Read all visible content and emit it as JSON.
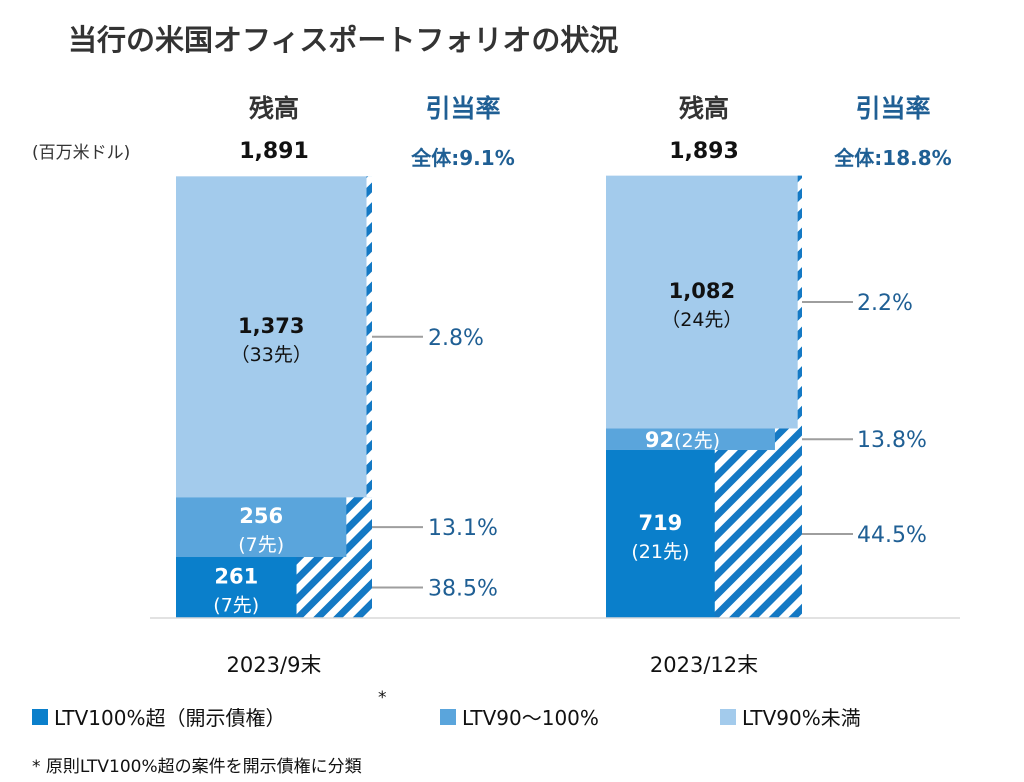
{
  "title": "当行の米国オフィスポートフォリオの状況",
  "unit_label": "(百万米ドル)",
  "header_balance": "残高",
  "header_ratio": "引当率",
  "legend": [
    {
      "label": "LTV100%超（開示債権）",
      "color": "#0a7fcb",
      "mark": "*"
    },
    {
      "label": "LTV90～100%",
      "color": "#5aa5dc"
    },
    {
      "label": "LTV90%未満",
      "color": "#a3cbec"
    }
  ],
  "footnote": "* 原則LTV100%超の案件を開示債権に分類",
  "chart_data": {
    "type": "bar",
    "stacked": true,
    "categories": [
      "2023/9末",
      "2023/12末"
    ],
    "totals": [
      "1,891",
      "1,893"
    ],
    "overall_ratio": [
      "全体:9.1%",
      "全体:18.8%"
    ],
    "series": [
      {
        "name": "LTV100%超（開示債権）",
        "color": "#0a7fcb",
        "text_color": "#ffffff",
        "values": [
          261,
          719
        ],
        "value_labels": [
          "261",
          "719"
        ],
        "counts": [
          "(7先)",
          "(21先)"
        ],
        "ratios": [
          38.5,
          44.5
        ],
        "ratio_labels": [
          "38.5%",
          "44.5%"
        ]
      },
      {
        "name": "LTV90～100%",
        "color": "#5aa5dc",
        "text_color": "#ffffff",
        "values": [
          256,
          92
        ],
        "value_labels": [
          "256",
          "92"
        ],
        "counts": [
          "(7先)",
          "(2先)"
        ],
        "ratios": [
          13.1,
          13.8
        ],
        "ratio_labels": [
          "13.1%",
          "13.8%"
        ]
      },
      {
        "name": "LTV90%未満",
        "color": "#a3cbec",
        "text_color": "#111111",
        "values": [
          1373,
          1082
        ],
        "value_labels": [
          "1,373",
          "1,082"
        ],
        "counts": [
          "（33先）",
          "（24先）"
        ],
        "ratios": [
          2.8,
          2.2
        ],
        "ratio_labels": [
          "2.8%",
          "2.2%"
        ]
      }
    ],
    "hatch_note": "hatched portion shows provision ratio"
  }
}
